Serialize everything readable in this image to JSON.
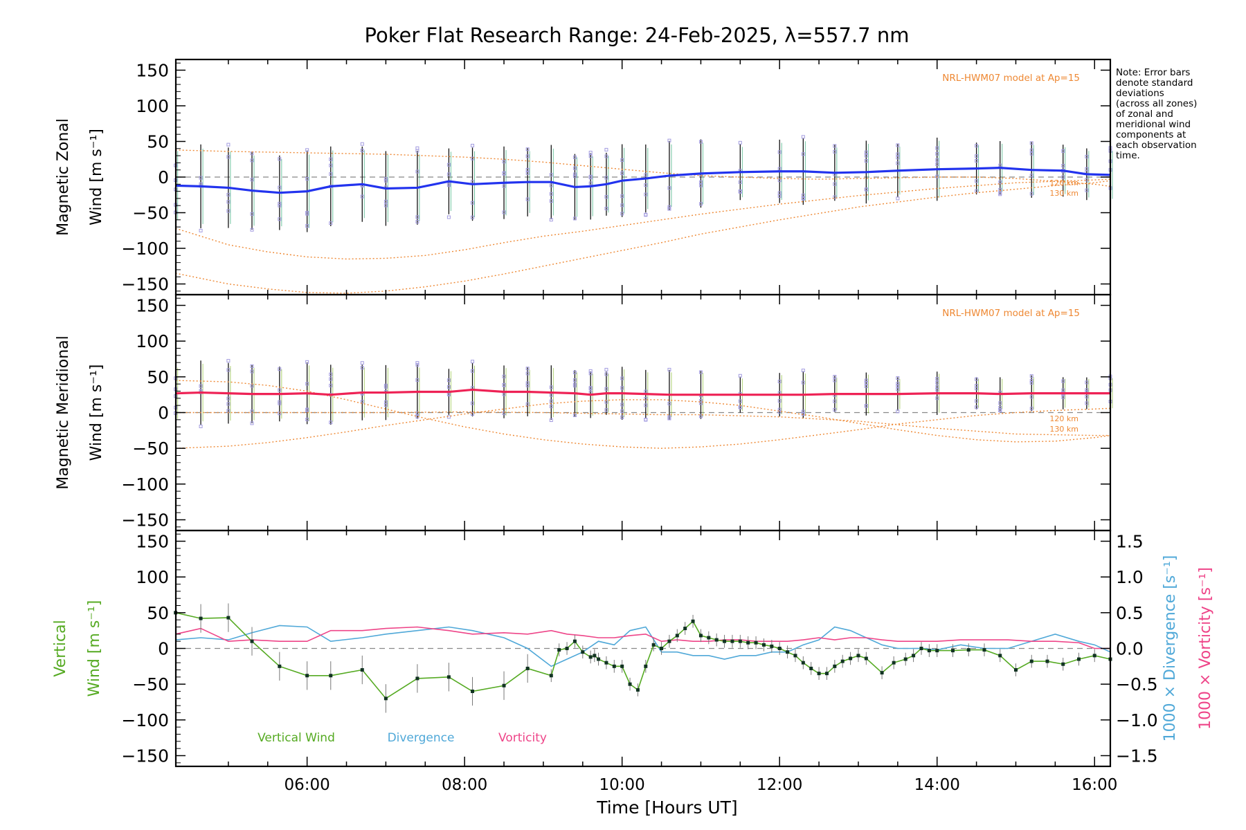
{
  "title": "Poker Flat Research Range: 24-Feb-2025, λ=557.7 nm",
  "note_lines": [
    "Note: Error bars",
    "denote standard",
    "deviations",
    "(across all zones)",
    "of zonal and",
    "meridional wind",
    "components at",
    "each observation",
    "time."
  ],
  "colors": {
    "zonal": "#2233ee",
    "meridional": "#ee2255",
    "vertical": "#55aa22",
    "divergence": "#4fa8d8",
    "vorticity": "#ee4488",
    "model": "#ee8833",
    "scatter": "#a39ce0",
    "errorbar": "#111111"
  },
  "chart_data": [
    {
      "type": "line",
      "ylabel": [
        "Magnetic Zonal",
        "Wind [m s⁻¹]"
      ],
      "ylim": [
        -165,
        165
      ],
      "yticks": [
        -150,
        -100,
        -50,
        0,
        50,
        100,
        150
      ],
      "xlim": [
        4.333,
        16.2
      ],
      "model_label": "NRL-HWM07 model at Ap=15",
      "model_alt_labels": [
        "120 km",
        "130 km"
      ],
      "series": [
        {
          "x": [
            4.33,
            4.65,
            5.0,
            5.3,
            5.65,
            6.0,
            6.3,
            6.7,
            7.0,
            7.4,
            7.8,
            8.1,
            8.5,
            8.8,
            9.1,
            9.4,
            9.6,
            9.8,
            10.0,
            10.3,
            10.6,
            11.0,
            11.5,
            12.0,
            12.3,
            12.7,
            13.1,
            13.5,
            14.0,
            14.5,
            14.8,
            15.2,
            15.6,
            15.9,
            16.2
          ],
          "y": [
            -12,
            -13,
            -15,
            -19,
            -22,
            -20,
            -13,
            -10,
            -16,
            -15,
            -6,
            -10,
            -8,
            -7,
            -7,
            -14,
            -13,
            -10,
            -5,
            -2,
            2,
            5,
            7,
            8,
            8,
            6,
            7,
            9,
            11,
            12,
            13,
            10,
            9,
            4,
            3
          ]
        },
        {
          "name": "120 km",
          "x": [
            4.33,
            5.0,
            5.5,
            6.0,
            6.5,
            7.0,
            7.5,
            8.0,
            8.5,
            9.0,
            9.5,
            10.0,
            10.5,
            11.0,
            11.5,
            12.0,
            12.5,
            13.0,
            13.5,
            14.0,
            14.5,
            15.0,
            15.5,
            16.0,
            16.2
          ],
          "y": [
            38,
            36,
            35,
            34,
            33,
            32,
            30,
            28,
            25,
            21,
            16,
            11,
            6,
            2,
            0,
            -2,
            -3,
            -2,
            -1,
            0,
            0,
            -2,
            -6,
            -10,
            -13
          ]
        },
        {
          "name": "130 km",
          "x": [
            4.33,
            5.0,
            5.5,
            6.0,
            6.5,
            7.0,
            7.5,
            8.0,
            8.5,
            9.0,
            9.5,
            10.0,
            10.5,
            11.0,
            11.5,
            12.0,
            12.5,
            13.0,
            13.5,
            14.0,
            14.5,
            15.0,
            15.5,
            16.0,
            16.2
          ],
          "y": [
            -72,
            -95,
            -105,
            -112,
            -115,
            -114,
            -110,
            -102,
            -92,
            -83,
            -76,
            -68,
            -60,
            -52,
            -45,
            -38,
            -32,
            -26,
            -21,
            -16,
            -12,
            -8,
            -6,
            -4,
            -3
          ]
        },
        {
          "x": [
            4.33,
            5.0,
            5.5,
            6.0,
            6.5,
            7.0,
            7.5,
            8.0,
            8.5,
            9.0,
            9.5,
            10.0,
            10.5,
            11.0,
            11.5,
            12.0,
            12.5,
            13.0,
            13.5,
            14.0,
            14.5,
            15.0,
            15.5,
            16.0,
            16.2
          ],
          "y": [
            -135,
            -150,
            -157,
            -162,
            -163,
            -160,
            -154,
            -146,
            -136,
            -125,
            -114,
            -103,
            -92,
            -80,
            -70,
            -60,
            -51,
            -42,
            -35,
            -28,
            -22,
            -17,
            -12,
            -8,
            -5
          ]
        }
      ]
    },
    {
      "type": "line",
      "ylabel": [
        "Magnetic Meridional",
        "Wind [m s⁻¹]"
      ],
      "ylim": [
        -165,
        165
      ],
      "yticks": [
        -150,
        -100,
        -50,
        0,
        50,
        100,
        150
      ],
      "xlim": [
        4.333,
        16.2
      ],
      "model_label": "NRL-HWM07 model at Ap=15",
      "model_alt_labels": [
        "120 km",
        "130 km"
      ],
      "series": [
        {
          "x": [
            4.33,
            4.65,
            5.0,
            5.3,
            5.65,
            6.0,
            6.3,
            6.7,
            7.0,
            7.4,
            7.8,
            8.1,
            8.5,
            8.8,
            9.1,
            9.4,
            9.6,
            9.8,
            10.0,
            10.3,
            10.6,
            11.0,
            11.5,
            12.0,
            12.3,
            12.7,
            13.1,
            13.5,
            14.0,
            14.5,
            14.8,
            15.2,
            15.6,
            15.9,
            16.2
          ],
          "y": [
            27,
            28,
            27,
            26,
            26,
            27,
            25,
            28,
            28,
            29,
            29,
            32,
            29,
            29,
            28,
            27,
            25,
            27,
            27,
            26,
            25,
            25,
            25,
            25,
            25,
            26,
            26,
            26,
            27,
            27,
            26,
            27,
            27,
            27,
            27
          ]
        },
        {
          "name": "120 km",
          "x": [
            4.33,
            5.0,
            5.5,
            6.0,
            6.5,
            7.0,
            7.5,
            8.0,
            8.5,
            9.0,
            9.5,
            10.0,
            10.5,
            11.0,
            11.5,
            12.0,
            12.5,
            13.0,
            13.5,
            14.0,
            14.5,
            15.0,
            15.5,
            16.0,
            16.2
          ],
          "y": [
            45,
            43,
            38,
            30,
            18,
            5,
            -8,
            -20,
            -30,
            -38,
            -44,
            -48,
            -50,
            -48,
            -44,
            -38,
            -31,
            -24,
            -16,
            -10,
            -4,
            0,
            3,
            5,
            6
          ]
        },
        {
          "name": "130 km",
          "x": [
            4.33,
            5.0,
            5.5,
            6.0,
            6.5,
            7.0,
            7.5,
            8.0,
            8.5,
            9.0,
            9.5,
            10.0,
            10.5,
            11.0,
            11.5,
            12.0,
            12.5,
            13.0,
            13.5,
            14.0,
            14.5,
            15.0,
            15.5,
            16.0,
            16.2
          ],
          "y": [
            -50,
            -47,
            -42,
            -35,
            -27,
            -18,
            -10,
            -2,
            5,
            12,
            16,
            18,
            18,
            15,
            10,
            2,
            -6,
            -15,
            -24,
            -32,
            -38,
            -41,
            -40,
            -35,
            -32
          ]
        },
        {
          "x": [
            4.33,
            5.0,
            6.0,
            7.0,
            8.0,
            9.0,
            10.0,
            10.5,
            11.0,
            12.0,
            13.0,
            14.0,
            15.0,
            16.0,
            16.2
          ],
          "y": [
            0,
            0,
            0,
            0,
            1,
            0,
            -2,
            -3,
            -3,
            -6,
            -12,
            -22,
            -30,
            -32,
            -32
          ]
        }
      ]
    },
    {
      "type": "line",
      "ylabel": [
        "Vertical",
        "Wind [m s⁻¹]"
      ],
      "ylim": [
        -165,
        165
      ],
      "yticks": [
        -150,
        -100,
        -50,
        0,
        50,
        100,
        150
      ],
      "xlim": [
        4.333,
        16.2
      ],
      "xlabel": "Time [Hours UT]",
      "xticks": [
        6,
        8,
        10,
        12,
        14,
        16
      ],
      "xticklabels": [
        "06:00",
        "08:00",
        "10:00",
        "12:00",
        "14:00",
        "16:00"
      ],
      "y2label": [
        "1000 × Divergence [s⁻¹]",
        "1000 × Vorticity [s⁻¹]"
      ],
      "y2lim": [
        -1.65,
        1.65
      ],
      "y2ticks": [
        -1.5,
        -1.0,
        -0.5,
        0.0,
        0.5,
        1.0,
        1.5
      ],
      "y2ticklabels": [
        "−1.5",
        "−1.0",
        "−0.5",
        "0.0",
        "0.5",
        "1.0",
        "1.5"
      ],
      "legend": [
        "Vertical Wind",
        "Divergence",
        "Vorticity"
      ],
      "series": [
        {
          "name": "Vertical Wind",
          "x": [
            4.33,
            4.65,
            5.0,
            5.3,
            5.65,
            6.0,
            6.3,
            6.7,
            7.0,
            7.4,
            7.8,
            8.1,
            8.5,
            8.8,
            9.1,
            9.2,
            9.3,
            9.4,
            9.5,
            9.6,
            9.65,
            9.7,
            9.8,
            9.9,
            10.0,
            10.1,
            10.2,
            10.3,
            10.4,
            10.5,
            10.6,
            10.7,
            10.8,
            10.9,
            11.0,
            11.1,
            11.2,
            11.3,
            11.4,
            11.5,
            11.6,
            11.7,
            11.8,
            11.9,
            12.0,
            12.1,
            12.2,
            12.3,
            12.4,
            12.5,
            12.6,
            12.7,
            12.8,
            12.9,
            13.0,
            13.1,
            13.3,
            13.45,
            13.6,
            13.7,
            13.8,
            13.9,
            14.0,
            14.2,
            14.4,
            14.6,
            14.8,
            15.0,
            15.2,
            15.4,
            15.6,
            15.8,
            16.0,
            16.2
          ],
          "y": [
            50,
            42,
            43,
            10,
            -25,
            -38,
            -38,
            -30,
            -70,
            -42,
            -40,
            -60,
            -52,
            -28,
            -38,
            -2,
            0,
            10,
            -5,
            -12,
            -10,
            -15,
            -20,
            -25,
            -25,
            -50,
            -58,
            -25,
            5,
            0,
            10,
            18,
            28,
            38,
            18,
            15,
            12,
            10,
            10,
            10,
            8,
            8,
            5,
            3,
            0,
            -5,
            -10,
            -20,
            -28,
            -35,
            -35,
            -25,
            -18,
            -14,
            -10,
            -14,
            -34,
            -20,
            -15,
            -10,
            0,
            -3,
            -3,
            -3,
            -2,
            -2,
            -10,
            -30,
            -18,
            -18,
            -22,
            -15,
            -10,
            -15
          ]
        },
        {
          "name": "Divergence",
          "x": [
            4.33,
            4.65,
            5.0,
            5.3,
            5.65,
            6.0,
            6.3,
            6.7,
            7.0,
            7.4,
            7.8,
            8.1,
            8.5,
            8.8,
            9.1,
            9.3,
            9.5,
            9.7,
            9.9,
            10.1,
            10.3,
            10.5,
            10.7,
            10.9,
            11.1,
            11.3,
            11.5,
            11.7,
            11.9,
            12.1,
            12.3,
            12.5,
            12.7,
            12.9,
            13.1,
            13.3,
            13.5,
            13.8,
            14.0,
            14.3,
            14.6,
            14.9,
            15.2,
            15.5,
            15.8,
            16.0,
            16.2
          ],
          "y": [
            0.12,
            0.15,
            0.12,
            0.22,
            0.32,
            0.3,
            0.1,
            0.15,
            0.2,
            0.25,
            0.3,
            0.25,
            0.15,
            0.0,
            -0.25,
            -0.15,
            -0.05,
            0.1,
            0.05,
            0.25,
            0.3,
            -0.05,
            -0.05,
            -0.1,
            -0.1,
            -0.15,
            -0.1,
            -0.1,
            -0.05,
            -0.05,
            0.05,
            0.12,
            0.3,
            0.25,
            0.15,
            0.05,
            0.0,
            0.0,
            -0.02,
            0.05,
            0.0,
            0.0,
            0.1,
            0.2,
            0.1,
            0.05,
            -0.05
          ]
        },
        {
          "name": "Vorticity",
          "x": [
            4.33,
            4.65,
            5.0,
            5.3,
            5.65,
            6.0,
            6.3,
            6.7,
            7.0,
            7.4,
            7.8,
            8.1,
            8.5,
            8.8,
            9.1,
            9.3,
            9.5,
            9.7,
            9.9,
            10.1,
            10.3,
            10.5,
            10.7,
            10.9,
            11.1,
            11.3,
            11.5,
            11.7,
            11.9,
            12.1,
            12.3,
            12.5,
            12.7,
            12.9,
            13.1,
            13.3,
            13.5,
            13.8,
            14.0,
            14.3,
            14.6,
            14.9,
            15.2,
            15.5,
            15.8,
            16.0,
            16.2
          ],
          "y": [
            0.2,
            0.28,
            0.1,
            0.12,
            0.1,
            0.1,
            0.25,
            0.25,
            0.28,
            0.3,
            0.25,
            0.2,
            0.22,
            0.2,
            0.25,
            0.2,
            0.18,
            0.15,
            0.15,
            0.18,
            0.2,
            0.1,
            0.12,
            0.1,
            0.1,
            0.12,
            0.12,
            0.1,
            0.1,
            0.1,
            0.12,
            0.15,
            0.12,
            0.15,
            0.15,
            0.12,
            0.1,
            0.1,
            0.1,
            0.12,
            0.12,
            0.12,
            0.1,
            0.1,
            0.08,
            0.0,
            0.0
          ]
        }
      ]
    }
  ]
}
